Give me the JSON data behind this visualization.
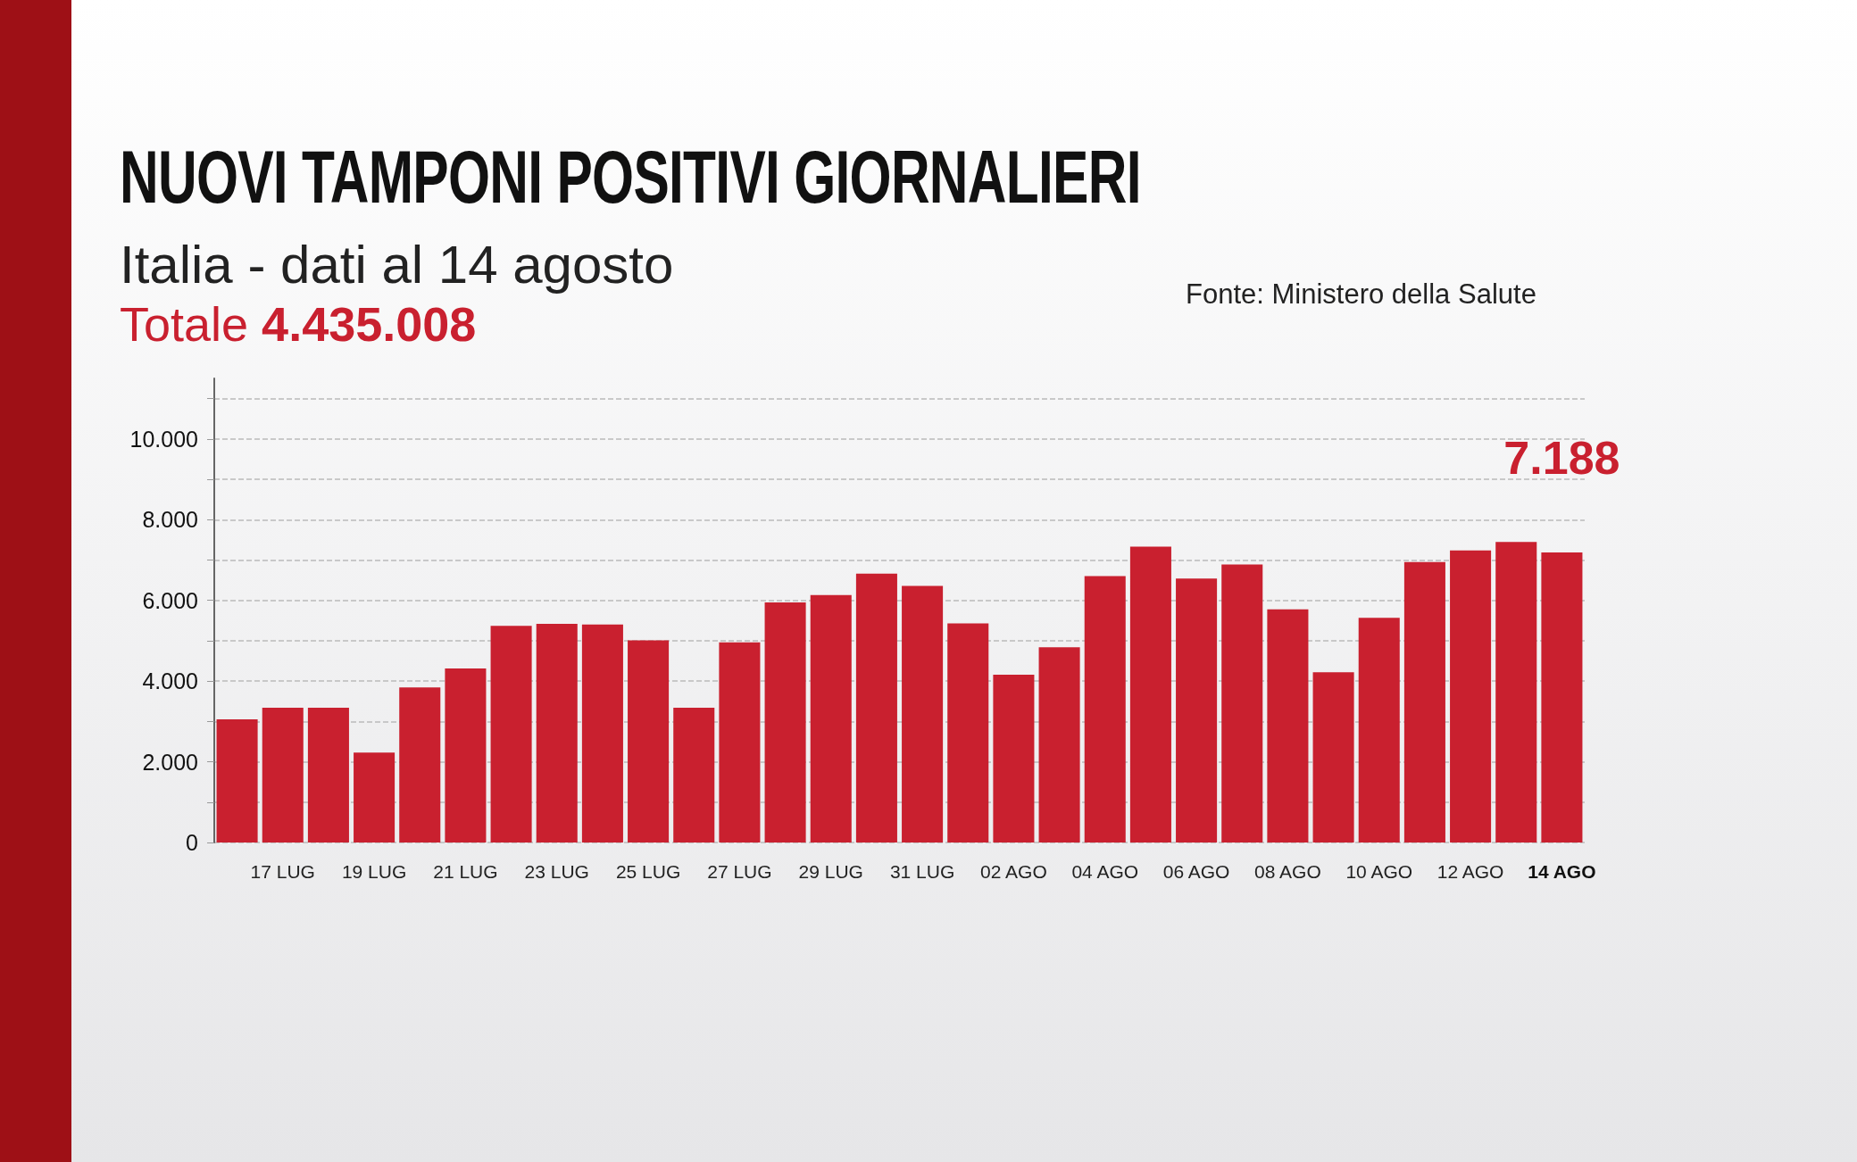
{
  "chart_data": {
    "type": "bar",
    "title": "NUOVI TAMPONI POSITIVI GIORNALIERI",
    "subtitle": "Italia - dati al 14 agosto",
    "annotations": [
      "Totale 4.435.008",
      "Fonte: Ministero della Salute"
    ],
    "categories": [
      null,
      "17 LUG",
      null,
      "19 LUG",
      null,
      "21 LUG",
      null,
      "23 LUG",
      null,
      "25 LUG",
      null,
      "27 LUG",
      null,
      "29 LUG",
      null,
      "31 LUG",
      null,
      "02 AGO",
      null,
      "04 AGO",
      null,
      "06 AGO",
      null,
      "08 AGO",
      null,
      "10 AGO",
      null,
      "12 AGO",
      null,
      "14 AGO"
    ],
    "values": [
      3050,
      3340,
      3340,
      2230,
      3840,
      4310,
      5370,
      5420,
      5400,
      5010,
      3340,
      4960,
      5950,
      6130,
      6660,
      6360,
      5430,
      4160,
      4840,
      6600,
      7330,
      6540,
      6890,
      5780,
      4220,
      5570,
      6950,
      7240,
      7450,
      7188
    ],
    "value_labels": [
      null,
      null,
      null,
      null,
      null,
      null,
      null,
      null,
      null,
      null,
      null,
      null,
      null,
      null,
      null,
      null,
      null,
      null,
      null,
      null,
      null,
      null,
      null,
      null,
      null,
      null,
      null,
      null,
      null,
      "7.188"
    ],
    "color": "#c9202f",
    "ylim": [
      0,
      11500
    ],
    "yticks": [
      {
        "value": 0,
        "label": "0"
      },
      {
        "value": 1000,
        "label": null
      },
      {
        "value": 2000,
        "label": "2.000"
      },
      {
        "value": 3000,
        "label": null
      },
      {
        "value": 4000,
        "label": "4.000"
      },
      {
        "value": 5000,
        "label": null
      },
      {
        "value": 6000,
        "label": "6.000"
      },
      {
        "value": 7000,
        "label": null
      },
      {
        "value": 8000,
        "label": "8.000"
      },
      {
        "value": 9000,
        "label": null
      },
      {
        "value": 10000,
        "label": "10.000"
      },
      {
        "value": 11000,
        "label": null
      }
    ],
    "grid": "y"
  }
}
